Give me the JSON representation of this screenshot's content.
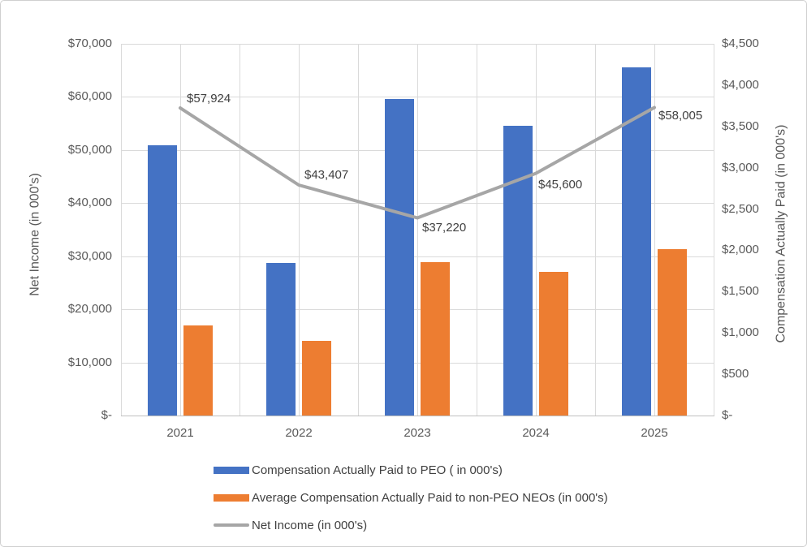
{
  "chart_data": {
    "type": "combo_bar_line",
    "categories": [
      "2021",
      "2022",
      "2023",
      "2024",
      "2025"
    ],
    "series": [
      {
        "key": "peo",
        "name": "Compensation Actually Paid to PEO ( in 000's)",
        "type": "bar",
        "axis": "right",
        "color": "#4472C4",
        "values": [
          3270,
          1845,
          3830,
          3510,
          4215
        ]
      },
      {
        "key": "non-peo-neos",
        "name": "Average Compensation Actually Paid to non-PEO NEOs  (in 000's)",
        "type": "bar",
        "axis": "right",
        "color": "#ED7D31",
        "values": [
          1095,
          905,
          1855,
          1740,
          2015
        ]
      },
      {
        "key": "net-income",
        "name": "Net Income (in 000's)",
        "type": "line",
        "axis": "left",
        "color": "#A6A6A6",
        "values": [
          57924,
          43407,
          37220,
          45600,
          58005
        ],
        "data_labels": [
          "$57,924",
          "$43,407",
          "$37,220",
          "$45,600",
          "$58,005"
        ],
        "label_offsets": [
          {
            "dx": 8,
            "dy": -11
          },
          {
            "dx": 7,
            "dy": -12
          },
          {
            "dx": 6,
            "dy": 13
          },
          {
            "dx": 3,
            "dy": 14
          },
          {
            "dx": 5,
            "dy": 11
          }
        ]
      }
    ],
    "left_axis": {
      "title": "Net Income (in 000's)",
      "min": 0,
      "max": 70000,
      "step": 10000,
      "tick_labels": [
        "$-",
        "$10,000",
        "$20,000",
        "$30,000",
        "$40,000",
        "$50,000",
        "$60,000",
        "$70,000"
      ]
    },
    "right_axis": {
      "title": "Compensation Actually Paid (in 000's)",
      "min": 0,
      "max": 4500,
      "step": 500,
      "tick_labels": [
        "$-",
        "$500",
        "$1,000",
        "$1,500",
        "$2,000",
        "$2,500",
        "$3,000",
        "$3,500",
        "$4,000",
        "$4,500"
      ]
    },
    "grid": {
      "horizontal": true,
      "vertical": true
    },
    "legend_position": "bottom"
  },
  "legend": {
    "items": [
      {
        "label": "Compensation Actually Paid to PEO ( in 000's)",
        "marker": "rect",
        "color": "#4472C4"
      },
      {
        "label": "Average Compensation Actually Paid to non-PEO NEOs  (in 000's)",
        "marker": "rect",
        "color": "#ED7D31"
      },
      {
        "label": "Net Income (in 000's)",
        "marker": "line",
        "color": "#A6A6A6"
      }
    ]
  },
  "colors": {
    "gridline": "#DADADA",
    "axis_line": "#BFBFBF",
    "tick_text": "#595959",
    "data_label_text": "#404040",
    "legend_text": "#404040"
  }
}
